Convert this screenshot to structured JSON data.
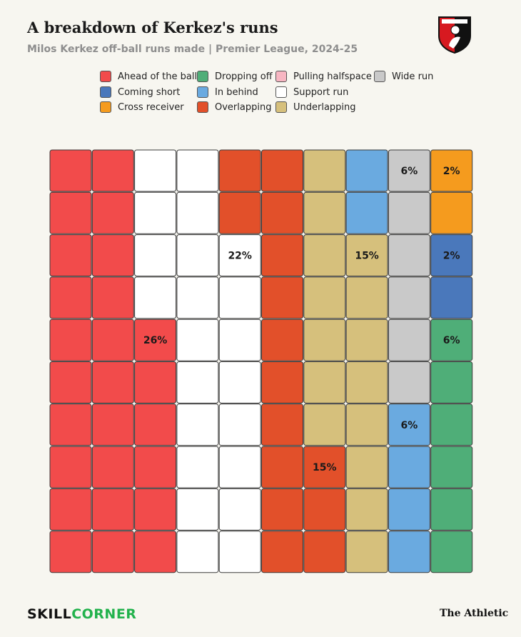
{
  "title": "A breakdown of Kerkez's runs",
  "subtitle": "Milos Kerkez off-ball runs made | Premier League, 2024-25",
  "crest": {
    "text": "AFC BOURNEMOUTH",
    "colors": [
      "#d71920",
      "#111111",
      "#ffffff"
    ]
  },
  "legend": [
    {
      "key": "ahead",
      "label": "Ahead of the ball",
      "color": "#f24b4b"
    },
    {
      "key": "dropping",
      "label": "Dropping off",
      "color": "#4fae78"
    },
    {
      "key": "pulling",
      "label": "Pulling halfspace",
      "color": "#f7b6c2"
    },
    {
      "key": "wide",
      "label": "Wide run",
      "color": "#c9c9c9"
    },
    {
      "key": "coming",
      "label": "Coming short",
      "color": "#4a78bb"
    },
    {
      "key": "behind",
      "label": "In behind",
      "color": "#6aaae0"
    },
    {
      "key": "support",
      "label": "Support run",
      "color": "#ffffff"
    },
    {
      "key": "cross",
      "label": "Cross receiver",
      "color": "#f59b1e"
    },
    {
      "key": "overlapping",
      "label": "Overlapping",
      "color": "#e2502a"
    },
    {
      "key": "underlapping",
      "label": "Underlapping",
      "color": "#d6c07c"
    }
  ],
  "chart_data": {
    "type": "waffle",
    "title": "A breakdown of Kerkez's runs",
    "subtitle": "Milos Kerkez off-ball runs made | Premier League, 2024-25",
    "unit": "%",
    "grid": {
      "rows": 10,
      "cols": 10
    },
    "series": [
      {
        "name": "Ahead of the ball",
        "key": "ahead",
        "value": 26,
        "label": "26%"
      },
      {
        "name": "Support run",
        "key": "support",
        "value": 22,
        "label": "22%"
      },
      {
        "name": "Overlapping",
        "key": "overlapping",
        "value": 15,
        "label": "15%"
      },
      {
        "name": "Underlapping",
        "key": "underlapping",
        "value": 15,
        "label": "15%"
      },
      {
        "name": "In behind",
        "key": "behind",
        "value": 6,
        "label": "6%"
      },
      {
        "name": "Wide run",
        "key": "wide",
        "value": 6,
        "label": "6%"
      },
      {
        "name": "Cross receiver",
        "key": "cross",
        "value": 2,
        "label": "2%"
      },
      {
        "name": "Coming short",
        "key": "coming",
        "value": 2,
        "label": "2%"
      },
      {
        "name": "Dropping off",
        "key": "dropping",
        "value": 6,
        "label": "6%"
      }
    ]
  },
  "branding": {
    "left_a": "SKILL",
    "left_b": "CORNER",
    "right": "The Athletic"
  }
}
